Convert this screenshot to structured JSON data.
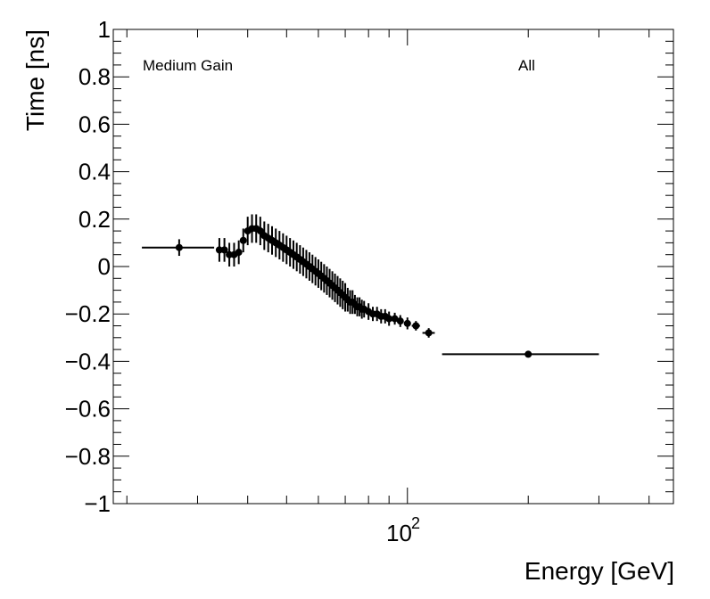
{
  "chart_data": {
    "type": "scatter",
    "xlabel": "Energy [GeV]",
    "ylabel": "Time [ns]",
    "xscale": "log",
    "xlim": [
      18.5,
      460
    ],
    "ylim": [
      -1,
      1
    ],
    "y_tick_labels": [
      "−1",
      "−0.8",
      "−0.6",
      "−0.4",
      "−0.2",
      "0",
      "0.2",
      "0.4",
      "0.6",
      "0.8",
      "1"
    ],
    "y_ticks": [
      -1,
      -0.8,
      -0.6,
      -0.4,
      -0.2,
      0,
      0.2,
      0.4,
      0.6,
      0.8,
      1
    ],
    "x_major_tick": {
      "value": 100,
      "base": "10",
      "exponent": "2"
    },
    "annotations": {
      "left": "Medium Gain",
      "right": "All"
    },
    "series": [
      {
        "name": "All",
        "points": [
          {
            "x": 27.0,
            "y": 0.08,
            "xlo": 21.8,
            "xhi": 33.0,
            "err": 0.035
          },
          {
            "x": 34.0,
            "y": 0.07,
            "xlo": 33.4,
            "xhi": 34.6,
            "err": 0.05
          },
          {
            "x": 35.0,
            "y": 0.07,
            "xlo": 34.5,
            "xhi": 35.5,
            "err": 0.05
          },
          {
            "x": 36.0,
            "y": 0.05,
            "xlo": 35.5,
            "xhi": 36.5,
            "err": 0.05
          },
          {
            "x": 37.0,
            "y": 0.05,
            "xlo": 36.5,
            "xhi": 37.5,
            "err": 0.05
          },
          {
            "x": 38.0,
            "y": 0.06,
            "xlo": 37.5,
            "xhi": 38.5,
            "err": 0.05
          },
          {
            "x": 39.0,
            "y": 0.11,
            "xlo": 38.5,
            "xhi": 39.5,
            "err": 0.05
          },
          {
            "x": 40.0,
            "y": 0.15,
            "xlo": 39.5,
            "xhi": 40.5,
            "err": 0.06
          },
          {
            "x": 41.0,
            "y": 0.16,
            "xlo": 40.5,
            "xhi": 41.5,
            "err": 0.06
          },
          {
            "x": 42.0,
            "y": 0.16,
            "xlo": 41.5,
            "xhi": 42.5,
            "err": 0.06
          },
          {
            "x": 43.0,
            "y": 0.15,
            "xlo": 42.5,
            "xhi": 43.5,
            "err": 0.06
          },
          {
            "x": 44.0,
            "y": 0.13,
            "xlo": 43.5,
            "xhi": 44.5,
            "err": 0.06
          },
          {
            "x": 45.0,
            "y": 0.12,
            "xlo": 44.5,
            "xhi": 45.5,
            "err": 0.06
          },
          {
            "x": 46.0,
            "y": 0.11,
            "xlo": 45.5,
            "xhi": 46.5,
            "err": 0.06
          },
          {
            "x": 47.0,
            "y": 0.1,
            "xlo": 46.5,
            "xhi": 47.5,
            "err": 0.06
          },
          {
            "x": 48.0,
            "y": 0.09,
            "xlo": 47.5,
            "xhi": 48.5,
            "err": 0.06
          },
          {
            "x": 49.0,
            "y": 0.08,
            "xlo": 48.5,
            "xhi": 49.5,
            "err": 0.06
          },
          {
            "x": 50.0,
            "y": 0.07,
            "xlo": 49.5,
            "xhi": 50.5,
            "err": 0.06
          },
          {
            "x": 51.0,
            "y": 0.06,
            "xlo": 50.5,
            "xhi": 51.5,
            "err": 0.06
          },
          {
            "x": 52.0,
            "y": 0.05,
            "xlo": 51.5,
            "xhi": 52.5,
            "err": 0.06
          },
          {
            "x": 53.0,
            "y": 0.04,
            "xlo": 52.5,
            "xhi": 53.5,
            "err": 0.06
          },
          {
            "x": 54.0,
            "y": 0.03,
            "xlo": 53.5,
            "xhi": 54.5,
            "err": 0.06
          },
          {
            "x": 55.0,
            "y": 0.02,
            "xlo": 54.5,
            "xhi": 55.5,
            "err": 0.06
          },
          {
            "x": 56.0,
            "y": 0.01,
            "xlo": 55.5,
            "xhi": 56.5,
            "err": 0.06
          },
          {
            "x": 57.0,
            "y": 0.0,
            "xlo": 56.5,
            "xhi": 57.5,
            "err": 0.06
          },
          {
            "x": 58.0,
            "y": -0.01,
            "xlo": 57.5,
            "xhi": 58.5,
            "err": 0.06
          },
          {
            "x": 59.0,
            "y": -0.02,
            "xlo": 58.5,
            "xhi": 59.5,
            "err": 0.06
          },
          {
            "x": 60.0,
            "y": -0.03,
            "xlo": 59.5,
            "xhi": 60.5,
            "err": 0.06
          },
          {
            "x": 61.0,
            "y": -0.04,
            "xlo": 60.5,
            "xhi": 61.5,
            "err": 0.06
          },
          {
            "x": 62.0,
            "y": -0.05,
            "xlo": 61.5,
            "xhi": 62.5,
            "err": 0.06
          },
          {
            "x": 63.0,
            "y": -0.06,
            "xlo": 62.5,
            "xhi": 63.5,
            "err": 0.06
          },
          {
            "x": 64.0,
            "y": -0.07,
            "xlo": 63.5,
            "xhi": 64.5,
            "err": 0.06
          },
          {
            "x": 65.0,
            "y": -0.08,
            "xlo": 64.5,
            "xhi": 65.5,
            "err": 0.06
          },
          {
            "x": 66.0,
            "y": -0.09,
            "xlo": 65.5,
            "xhi": 66.5,
            "err": 0.06
          },
          {
            "x": 67.0,
            "y": -0.1,
            "xlo": 66.5,
            "xhi": 67.5,
            "err": 0.06
          },
          {
            "x": 68.0,
            "y": -0.11,
            "xlo": 67.5,
            "xhi": 68.5,
            "err": 0.06
          },
          {
            "x": 69.0,
            "y": -0.12,
            "xlo": 68.5,
            "xhi": 69.5,
            "err": 0.06
          },
          {
            "x": 70.0,
            "y": -0.13,
            "xlo": 69.5,
            "xhi": 70.5,
            "err": 0.06
          },
          {
            "x": 71.0,
            "y": -0.14,
            "xlo": 70.5,
            "xhi": 71.5,
            "err": 0.05
          },
          {
            "x": 72.0,
            "y": -0.15,
            "xlo": 71.5,
            "xhi": 72.5,
            "err": 0.05
          },
          {
            "x": 73.0,
            "y": -0.15,
            "xlo": 72.5,
            "xhi": 73.5,
            "err": 0.05
          },
          {
            "x": 74.0,
            "y": -0.16,
            "xlo": 73.5,
            "xhi": 74.5,
            "err": 0.04
          },
          {
            "x": 75.0,
            "y": -0.17,
            "xlo": 74.5,
            "xhi": 75.5,
            "err": 0.04
          },
          {
            "x": 76.0,
            "y": -0.17,
            "xlo": 75.5,
            "xhi": 76.5,
            "err": 0.04
          },
          {
            "x": 77.0,
            "y": -0.18,
            "xlo": 76.5,
            "xhi": 77.5,
            "err": 0.04
          },
          {
            "x": 78.0,
            "y": -0.18,
            "xlo": 77.5,
            "xhi": 78.5,
            "err": 0.035
          },
          {
            "x": 80.0,
            "y": -0.19,
            "xlo": 79.0,
            "xhi": 81.0,
            "err": 0.035
          },
          {
            "x": 82.0,
            "y": -0.2,
            "xlo": 81.0,
            "xhi": 83.0,
            "err": 0.03
          },
          {
            "x": 84.0,
            "y": -0.2,
            "xlo": 83.0,
            "xhi": 85.0,
            "err": 0.03
          },
          {
            "x": 86.0,
            "y": -0.21,
            "xlo": 85.0,
            "xhi": 87.0,
            "err": 0.03
          },
          {
            "x": 88.0,
            "y": -0.21,
            "xlo": 87.0,
            "xhi": 89.0,
            "err": 0.03
          },
          {
            "x": 90.0,
            "y": -0.22,
            "xlo": 89.0,
            "xhi": 91.0,
            "err": 0.03
          },
          {
            "x": 93.0,
            "y": -0.22,
            "xlo": 91.5,
            "xhi": 94.5,
            "err": 0.025
          },
          {
            "x": 96.0,
            "y": -0.23,
            "xlo": 94.5,
            "xhi": 97.5,
            "err": 0.025
          },
          {
            "x": 100.0,
            "y": -0.24,
            "xlo": 98.0,
            "xhi": 102.0,
            "err": 0.025
          },
          {
            "x": 105.0,
            "y": -0.25,
            "xlo": 102.5,
            "xhi": 107.5,
            "err": 0.02
          },
          {
            "x": 113.0,
            "y": -0.28,
            "xlo": 109.0,
            "xhi": 117.0,
            "err": 0.02
          },
          {
            "x": 200.0,
            "y": -0.37,
            "xlo": 122.0,
            "xhi": 300.0,
            "err": 0.008
          }
        ]
      }
    ]
  }
}
